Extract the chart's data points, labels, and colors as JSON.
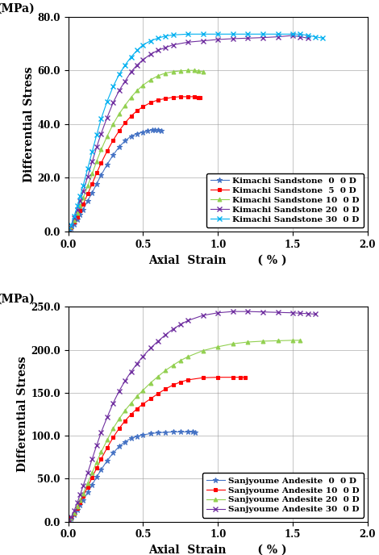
{
  "top_chart": {
    "ylabel": "Differential Stress",
    "ylabel2": "(MPa)",
    "xlabel": "Axial Strain",
    "xlabel2": "( % )",
    "xlim": [
      0.0,
      2.0
    ],
    "ylim": [
      0.0,
      80.0
    ],
    "xticks": [
      0.0,
      0.5,
      1.0,
      1.5,
      2.0
    ],
    "yticks": [
      0.0,
      20.0,
      40.0,
      60.0,
      80.0
    ],
    "series": [
      {
        "label": "Kimachi Sandstone  0  0 D",
        "color": "#4472C4",
        "marker": "*",
        "x": [
          0.0,
          0.02,
          0.04,
          0.06,
          0.08,
          0.1,
          0.13,
          0.16,
          0.19,
          0.22,
          0.26,
          0.3,
          0.34,
          0.38,
          0.42,
          0.46,
          0.5,
          0.53,
          0.56,
          0.58,
          0.6,
          0.62
        ],
        "y": [
          0.0,
          1.2,
          2.8,
          4.5,
          6.2,
          8.2,
          11.5,
          14.5,
          17.8,
          21.0,
          25.0,
          28.5,
          31.5,
          33.8,
          35.5,
          36.5,
          37.0,
          37.5,
          37.8,
          37.9,
          37.8,
          37.5
        ]
      },
      {
        "label": "Kimachi Sandstone  5  0 D",
        "color": "#FF0000",
        "marker": "s",
        "x": [
          0.0,
          0.02,
          0.04,
          0.06,
          0.08,
          0.1,
          0.13,
          0.16,
          0.19,
          0.22,
          0.26,
          0.3,
          0.34,
          0.38,
          0.42,
          0.46,
          0.5,
          0.55,
          0.6,
          0.65,
          0.7,
          0.75,
          0.8,
          0.84,
          0.87,
          0.88
        ],
        "y": [
          0.0,
          1.5,
          3.5,
          5.5,
          7.8,
          10.2,
          14.0,
          17.8,
          21.8,
          25.5,
          30.0,
          34.0,
          37.5,
          40.5,
          43.0,
          45.0,
          46.5,
          48.0,
          49.0,
          49.5,
          50.0,
          50.2,
          50.2,
          50.2,
          50.0,
          50.0
        ]
      },
      {
        "label": "Kimachi Sandstone 10  0 D",
        "color": "#92D050",
        "marker": "^",
        "x": [
          0.0,
          0.02,
          0.04,
          0.06,
          0.08,
          0.1,
          0.13,
          0.16,
          0.19,
          0.22,
          0.26,
          0.3,
          0.34,
          0.38,
          0.42,
          0.46,
          0.5,
          0.55,
          0.6,
          0.65,
          0.7,
          0.75,
          0.8,
          0.84,
          0.87,
          0.9
        ],
        "y": [
          0.0,
          1.8,
          4.2,
          6.8,
          9.5,
          12.5,
          17.0,
          21.5,
          26.2,
          30.5,
          35.5,
          40.0,
          43.8,
          47.0,
          50.0,
          52.5,
          54.5,
          56.5,
          58.0,
          59.0,
          59.5,
          59.8,
          60.0,
          60.0,
          59.8,
          59.5
        ]
      },
      {
        "label": "Kimachi Sandstone 20  0 D",
        "color": "#7030A0",
        "marker": "x",
        "x": [
          0.0,
          0.02,
          0.04,
          0.06,
          0.08,
          0.1,
          0.13,
          0.16,
          0.19,
          0.22,
          0.26,
          0.3,
          0.34,
          0.38,
          0.42,
          0.46,
          0.5,
          0.55,
          0.6,
          0.65,
          0.7,
          0.8,
          0.9,
          1.0,
          1.1,
          1.2,
          1.3,
          1.4,
          1.5,
          1.55,
          1.6
        ],
        "y": [
          0.0,
          2.2,
          5.0,
          8.2,
          11.5,
          15.0,
          20.5,
          26.0,
          31.5,
          36.5,
          42.5,
          48.0,
          52.5,
          56.0,
          59.5,
          62.0,
          64.0,
          66.0,
          67.5,
          68.5,
          69.5,
          70.5,
          71.0,
          71.5,
          71.8,
          72.0,
          72.2,
          72.5,
          73.0,
          72.5,
          72.0
        ]
      },
      {
        "label": "Kimachi Sandstone 30  0 D",
        "color": "#00B0F0",
        "marker": "x",
        "x": [
          0.0,
          0.02,
          0.04,
          0.06,
          0.08,
          0.1,
          0.13,
          0.16,
          0.19,
          0.22,
          0.26,
          0.3,
          0.34,
          0.38,
          0.42,
          0.46,
          0.5,
          0.55,
          0.6,
          0.65,
          0.7,
          0.8,
          0.9,
          1.0,
          1.1,
          1.2,
          1.3,
          1.4,
          1.5,
          1.55,
          1.6,
          1.65,
          1.7
        ],
        "y": [
          0.0,
          2.5,
          5.8,
          9.5,
          13.2,
          17.2,
          23.5,
          29.8,
          36.0,
          42.0,
          48.5,
          54.0,
          58.5,
          62.0,
          65.0,
          67.5,
          69.5,
          71.0,
          72.0,
          72.8,
          73.2,
          73.5,
          73.5,
          73.5,
          73.5,
          73.5,
          73.5,
          73.5,
          73.5,
          73.5,
          73.0,
          72.5,
          72.0
        ]
      }
    ]
  },
  "bottom_chart": {
    "ylabel": "Differential Stress",
    "ylabel2": "(MPa)",
    "xlabel": "Axial Strain",
    "xlabel2": "( % )",
    "xlim": [
      0.0,
      2.0
    ],
    "ylim": [
      0.0,
      250.0
    ],
    "xticks": [
      0.0,
      0.5,
      1.0,
      1.5,
      2.0
    ],
    "yticks": [
      0.0,
      50.0,
      100.0,
      150.0,
      200.0,
      250.0
    ],
    "series": [
      {
        "label": "Sanjyoume Andesite  0  0 D",
        "color": "#4472C4",
        "marker": "*",
        "x": [
          0.0,
          0.02,
          0.04,
          0.06,
          0.08,
          0.1,
          0.13,
          0.16,
          0.19,
          0.22,
          0.26,
          0.3,
          0.34,
          0.38,
          0.42,
          0.46,
          0.5,
          0.55,
          0.6,
          0.65,
          0.7,
          0.75,
          0.8,
          0.83,
          0.85
        ],
        "y": [
          0.0,
          3.5,
          8.0,
          13.5,
          19.0,
          25.0,
          34.0,
          43.0,
          52.0,
          60.5,
          71.0,
          80.0,
          87.5,
          93.0,
          97.0,
          99.5,
          101.0,
          102.5,
          103.5,
          104.0,
          104.5,
          104.5,
          104.5,
          104.5,
          104.0
        ]
      },
      {
        "label": "Sanjyoume Andesite 10  0 D",
        "color": "#FF0000",
        "marker": "s",
        "x": [
          0.0,
          0.02,
          0.04,
          0.06,
          0.08,
          0.1,
          0.13,
          0.16,
          0.19,
          0.22,
          0.26,
          0.3,
          0.34,
          0.38,
          0.42,
          0.46,
          0.5,
          0.55,
          0.6,
          0.65,
          0.7,
          0.75,
          0.8,
          0.9,
          1.0,
          1.1,
          1.15,
          1.18
        ],
        "y": [
          0.0,
          4.0,
          9.5,
          16.0,
          22.5,
          30.0,
          40.5,
          51.5,
          62.5,
          73.0,
          86.0,
          98.0,
          108.5,
          117.5,
          125.0,
          131.5,
          137.0,
          143.0,
          149.0,
          154.5,
          159.0,
          162.5,
          165.0,
          167.5,
          168.0,
          168.0,
          168.0,
          168.0
        ]
      },
      {
        "label": "Sanjyoume Andesite 20  0 D",
        "color": "#92D050",
        "marker": "^",
        "x": [
          0.0,
          0.02,
          0.04,
          0.06,
          0.08,
          0.1,
          0.13,
          0.16,
          0.19,
          0.22,
          0.26,
          0.3,
          0.34,
          0.38,
          0.42,
          0.46,
          0.5,
          0.55,
          0.6,
          0.65,
          0.7,
          0.75,
          0.8,
          0.9,
          1.0,
          1.1,
          1.2,
          1.3,
          1.4,
          1.5,
          1.55
        ],
        "y": [
          0.0,
          4.5,
          10.5,
          17.5,
          25.0,
          33.0,
          45.0,
          57.0,
          69.5,
          81.0,
          95.0,
          108.5,
          119.5,
          129.5,
          138.0,
          146.0,
          153.0,
          161.5,
          169.0,
          176.0,
          182.0,
          187.5,
          192.0,
          199.0,
          203.5,
          207.0,
          209.0,
          210.0,
          210.5,
          211.0,
          211.0
        ]
      },
      {
        "label": "Sanjyoume Andesite 30  0 D",
        "color": "#7030A0",
        "marker": "x",
        "x": [
          0.0,
          0.02,
          0.04,
          0.06,
          0.08,
          0.1,
          0.13,
          0.16,
          0.19,
          0.22,
          0.26,
          0.3,
          0.34,
          0.38,
          0.42,
          0.46,
          0.5,
          0.55,
          0.6,
          0.65,
          0.7,
          0.75,
          0.8,
          0.9,
          1.0,
          1.1,
          1.2,
          1.3,
          1.4,
          1.5,
          1.55,
          1.6,
          1.65
        ],
        "y": [
          0.0,
          5.5,
          13.0,
          22.0,
          31.5,
          42.0,
          57.0,
          73.0,
          89.0,
          104.0,
          121.5,
          138.0,
          152.0,
          164.0,
          174.5,
          184.0,
          192.5,
          202.0,
          210.0,
          217.5,
          224.0,
          229.5,
          234.0,
          240.0,
          243.0,
          244.5,
          244.5,
          244.0,
          243.5,
          243.0,
          242.5,
          242.0,
          241.5
        ]
      }
    ]
  },
  "background_color": "#FFFFFF",
  "grid_color": "#999999",
  "legend_fontsize": 7.5,
  "tick_fontsize": 8.5,
  "axis_label_fontsize": 10,
  "font_family": "DejaVu Serif"
}
